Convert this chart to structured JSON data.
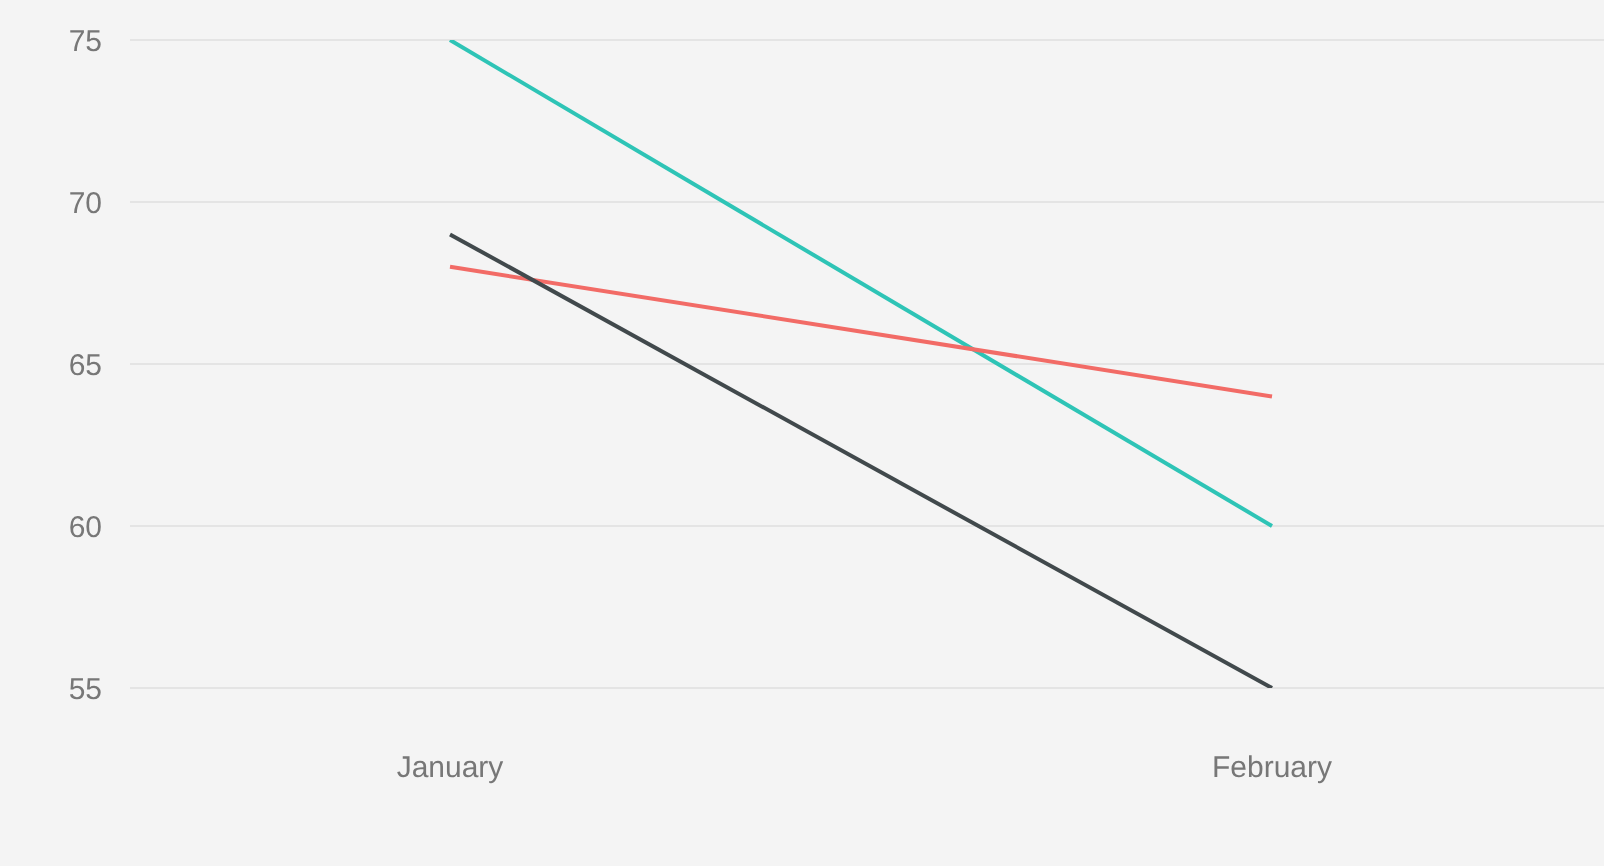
{
  "chart_data": {
    "type": "line",
    "categories": [
      "January",
      "February"
    ],
    "series": [
      {
        "color": "#2ec4b6",
        "values": [
          75,
          60
        ]
      },
      {
        "color": "#f26b66",
        "values": [
          68,
          64
        ]
      },
      {
        "color": "#41494c",
        "values": [
          69,
          55
        ]
      }
    ],
    "ylim": [
      55,
      75
    ],
    "yticks": [
      55,
      60,
      65,
      70,
      75
    ],
    "grid": "y"
  }
}
